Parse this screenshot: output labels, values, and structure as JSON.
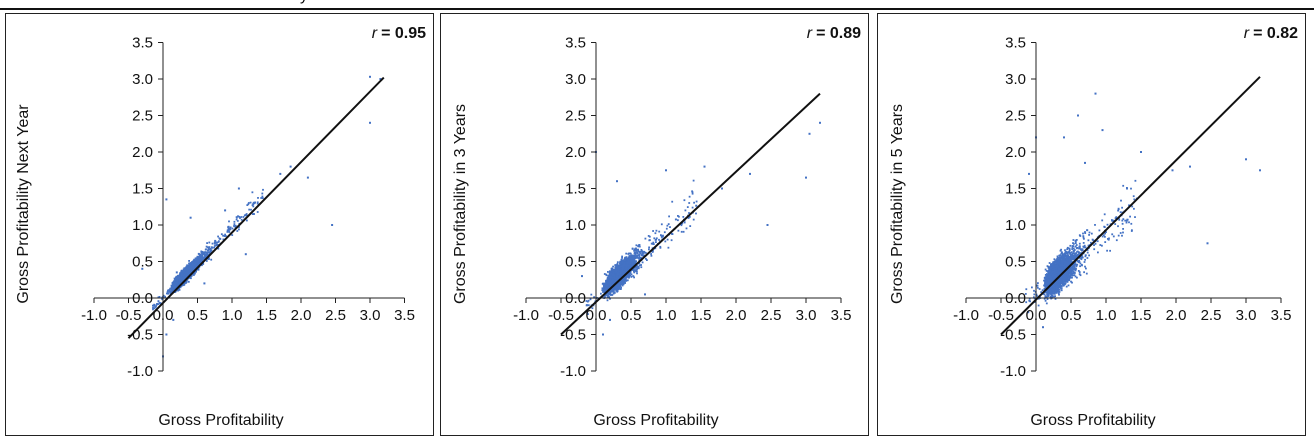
{
  "page": {
    "title_fragment": "y"
  },
  "chart_data": [
    {
      "type": "scatter",
      "title": "",
      "xlabel": "Gross Profitability",
      "ylabel": "Gross Profitability Next Year",
      "correlation_prefix": "r",
      "correlation_value": "= 0.95",
      "xlim": [
        -1.0,
        3.5
      ],
      "ylim": [
        -1.0,
        3.5
      ],
      "x_ticks": [
        -1.0,
        -0.5,
        0.0,
        0.5,
        1.0,
        1.5,
        2.0,
        2.5,
        3.0,
        3.5
      ],
      "y_ticks": [
        -1.0,
        -0.5,
        0.0,
        0.5,
        1.0,
        1.5,
        2.0,
        2.5,
        3.0,
        3.5
      ],
      "x_tick_labels": [
        "-1.0",
        "-0.5",
        "0.0",
        "0.5",
        "1.0",
        "1.5",
        "2.0",
        "2.5",
        "3.0",
        "3.5"
      ],
      "y_tick_labels": [
        "-1.0",
        "-0.5",
        "0.0",
        "0.5",
        "1.0",
        "1.5",
        "2.0",
        "2.5",
        "3.0",
        "3.5"
      ],
      "fit_line": {
        "x": [
          -0.5,
          3.2
        ],
        "y": [
          -0.55,
          3.02
        ]
      },
      "point_color": "#4472c4",
      "cloud": {
        "slope": 0.96,
        "intercept": 0.0,
        "noise": 0.09,
        "n": 3200
      },
      "points": [
        [
          3.0,
          3.03
        ],
        [
          3.15,
          3.0
        ],
        [
          3.0,
          2.4
        ],
        [
          2.45,
          1.0
        ],
        [
          2.1,
          1.65
        ],
        [
          1.1,
          1.5
        ],
        [
          0.9,
          1.2
        ],
        [
          0.0,
          -0.8
        ],
        [
          0.05,
          -0.5
        ],
        [
          0.15,
          -0.3
        ],
        [
          0.05,
          1.35
        ],
        [
          -0.3,
          0.4
        ],
        [
          0.2,
          0.35
        ],
        [
          1.7,
          1.7
        ],
        [
          1.85,
          1.8
        ],
        [
          0.4,
          1.1
        ],
        [
          0.6,
          0.2
        ],
        [
          1.2,
          0.6
        ]
      ]
    },
    {
      "type": "scatter",
      "title": "",
      "xlabel": "Gross Profitability",
      "ylabel": "Gross Profitability in 3 Years",
      "correlation_prefix": "r",
      "correlation_value": "= 0.89",
      "xlim": [
        -1.0,
        3.5
      ],
      "ylim": [
        -1.0,
        3.5
      ],
      "x_ticks": [
        -1.0,
        -0.5,
        0.0,
        0.5,
        1.0,
        1.5,
        2.0,
        2.5,
        3.0,
        3.5
      ],
      "y_ticks": [
        -1.0,
        -0.5,
        0.0,
        0.5,
        1.0,
        1.5,
        2.0,
        2.5,
        3.0,
        3.5
      ],
      "x_tick_labels": [
        "-1.0",
        "-0.5",
        "0.0",
        "0.5",
        "1.0",
        "1.5",
        "2.0",
        "2.5",
        "3.0",
        "3.5"
      ],
      "y_tick_labels": [
        "-1.0",
        "-0.5",
        "0.0",
        "0.5",
        "1.0",
        "1.5",
        "2.0",
        "2.5",
        "3.0",
        "3.5"
      ],
      "fit_line": {
        "x": [
          -0.5,
          3.2
        ],
        "y": [
          -0.5,
          2.8
        ]
      },
      "point_color": "#4472c4",
      "cloud": {
        "slope": 0.88,
        "intercept": 0.02,
        "noise": 0.16,
        "n": 3200
      },
      "points": [
        [
          3.2,
          2.4
        ],
        [
          3.05,
          2.25
        ],
        [
          3.0,
          1.65
        ],
        [
          2.45,
          1.0
        ],
        [
          2.2,
          1.7
        ],
        [
          1.8,
          1.5
        ],
        [
          0.0,
          2.0
        ],
        [
          0.1,
          -0.5
        ],
        [
          0.2,
          -0.3
        ],
        [
          0.3,
          1.6
        ],
        [
          1.0,
          1.75
        ],
        [
          1.55,
          1.8
        ],
        [
          -0.2,
          0.3
        ],
        [
          0.7,
          0.05
        ]
      ]
    },
    {
      "type": "scatter",
      "title": "",
      "xlabel": "Gross Profitability",
      "ylabel": "Gross Profitability in 5 Years",
      "correlation_prefix": "r",
      "correlation_value": "= 0.82",
      "xlim": [
        -1.0,
        3.5
      ],
      "ylim": [
        -1.0,
        3.5
      ],
      "x_ticks": [
        -1.0,
        -0.5,
        0.0,
        0.5,
        1.0,
        1.5,
        2.0,
        2.5,
        3.0,
        3.5
      ],
      "y_ticks": [
        -1.0,
        -0.5,
        0.0,
        0.5,
        1.0,
        1.5,
        2.0,
        2.5,
        3.0,
        3.5
      ],
      "x_tick_labels": [
        "-1.0",
        "-0.5",
        "0.0",
        "0.5",
        "1.0",
        "1.5",
        "2.0",
        "2.5",
        "3.0",
        "3.5"
      ],
      "y_tick_labels": [
        "-1.0",
        "-0.5",
        "0.0",
        "0.5",
        "1.0",
        "1.5",
        "2.0",
        "2.5",
        "3.0",
        "3.5"
      ],
      "fit_line": {
        "x": [
          -0.5,
          3.2
        ],
        "y": [
          -0.5,
          3.03
        ]
      },
      "point_color": "#4472c4",
      "cloud": {
        "slope": 0.85,
        "intercept": 0.05,
        "noise": 0.22,
        "n": 3200
      },
      "points": [
        [
          3.0,
          1.9
        ],
        [
          3.2,
          1.75
        ],
        [
          2.45,
          0.75
        ],
        [
          2.2,
          1.8
        ],
        [
          1.95,
          1.75
        ],
        [
          1.5,
          2.0
        ],
        [
          0.85,
          2.8
        ],
        [
          0.6,
          2.5
        ],
        [
          0.4,
          2.2
        ],
        [
          0.95,
          2.3
        ],
        [
          0.0,
          2.2
        ],
        [
          -0.1,
          1.7
        ],
        [
          0.1,
          -0.4
        ],
        [
          1.3,
          1.5
        ],
        [
          0.7,
          1.85
        ]
      ]
    }
  ]
}
